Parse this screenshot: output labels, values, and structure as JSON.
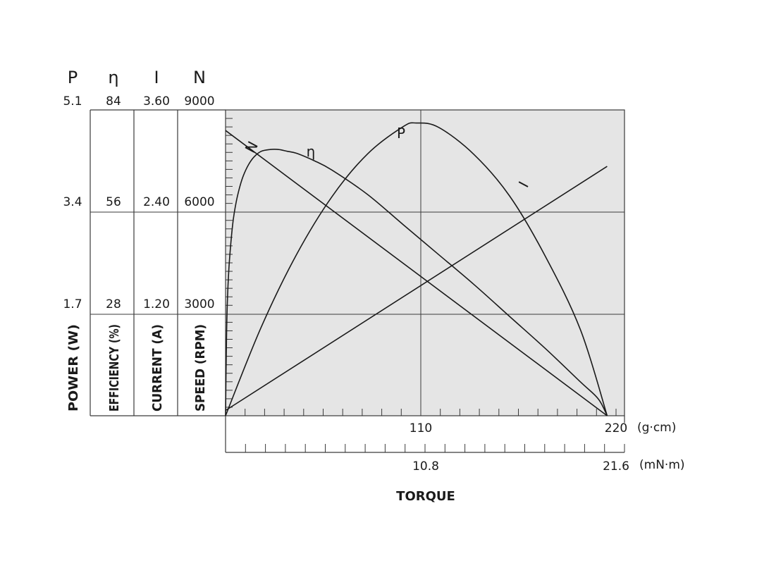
{
  "chart_data": {
    "type": "line",
    "title": "",
    "x_axes": [
      {
        "id": "gcm",
        "unit_label": "(g·cm)",
        "range": [
          0,
          220
        ],
        "tick_labels": [
          "110",
          "220"
        ],
        "tick_values": [
          110,
          220
        ]
      },
      {
        "id": "mnm",
        "unit_label": "(mN·m)",
        "range": [
          0,
          21.6
        ],
        "tick_labels": [
          "10.8",
          "21.6"
        ],
        "tick_values": [
          10.8,
          21.6
        ]
      }
    ],
    "xlabel": "TORQUE",
    "y_axes": [
      {
        "id": "P",
        "symbol": "P",
        "title": "POWER (W)",
        "range": [
          0,
          5.1
        ],
        "tick_labels": [
          "1.7",
          "3.4",
          "5.1"
        ],
        "tick_values": [
          1.7,
          3.4,
          5.1
        ]
      },
      {
        "id": "eta",
        "symbol": "η",
        "title": "EFFICIENCY (%)",
        "range": [
          0,
          84
        ],
        "tick_labels": [
          "28",
          "56",
          "84"
        ],
        "tick_values": [
          28,
          56,
          84
        ]
      },
      {
        "id": "I",
        "symbol": "I",
        "title": "CURRENT (A)",
        "range": [
          0,
          3.6
        ],
        "tick_labels": [
          "1.20",
          "2.40",
          "3.60"
        ],
        "tick_values": [
          1.2,
          2.4,
          3.6
        ]
      },
      {
        "id": "N",
        "symbol": "N",
        "title": "SPEED (RPM)",
        "range": [
          0,
          9000
        ],
        "tick_labels": [
          "3000",
          "6000",
          "9000"
        ],
        "tick_values": [
          3000,
          6000,
          9000
        ]
      }
    ],
    "grid": true,
    "series": [
      {
        "name": "N",
        "axis": "N",
        "x": [
          0,
          215
        ],
        "y": [
          8150,
          0
        ]
      },
      {
        "name": "η",
        "axis": "eta",
        "x": [
          0,
          0.5,
          1,
          2,
          4,
          6,
          8,
          10,
          13,
          16,
          20,
          25,
          30,
          35,
          40,
          50,
          60,
          80,
          100,
          120,
          140,
          160,
          180,
          200,
          210,
          215
        ],
        "y": [
          0,
          20,
          30,
          40,
          51,
          57,
          61,
          64,
          67,
          69,
          70.5,
          71,
          71,
          70.5,
          70,
          68,
          65.5,
          59,
          51,
          43,
          35,
          26.5,
          18,
          9,
          4.5,
          0
        ]
      },
      {
        "name": "P",
        "axis": "P",
        "x": [
          0,
          20,
          40,
          60,
          80,
          100,
          107.5,
          120,
          140,
          160,
          180,
          200,
          215
        ],
        "y": [
          0,
          1.43,
          2.61,
          3.55,
          4.24,
          4.68,
          4.74,
          4.67,
          4.23,
          3.56,
          2.59,
          1.39,
          0
        ]
      },
      {
        "name": "I",
        "axis": "I",
        "x": [
          0,
          215
        ],
        "y": [
          0.06,
          2.85
        ]
      }
    ],
    "curve_labels": [
      {
        "series": "N",
        "text": "N"
      },
      {
        "series": "η",
        "text": "η"
      },
      {
        "series": "P",
        "text": "P"
      },
      {
        "series": "I",
        "text": "I"
      }
    ]
  }
}
